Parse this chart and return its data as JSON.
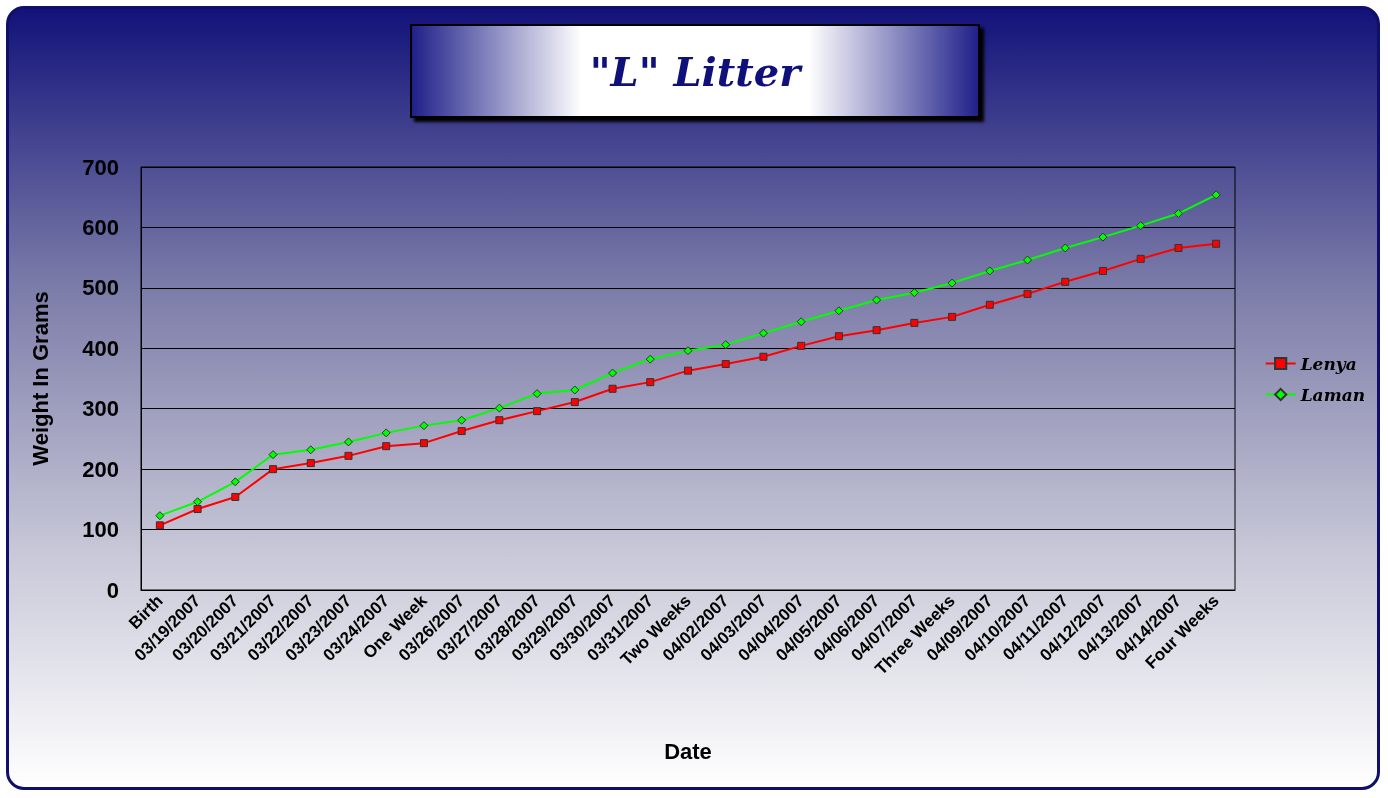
{
  "chart_data": {
    "type": "line",
    "title": "\"L\" Litter",
    "xlabel": "Date",
    "ylabel": "Weight In Grams",
    "categories": [
      "Birth",
      "03/19/2007",
      "03/20/2007",
      "03/21/2007",
      "03/22/2007",
      "03/23/2007",
      "03/24/2007",
      "One Week",
      "03/26/2007",
      "03/27/2007",
      "03/28/2007",
      "03/29/2007",
      "03/30/2007",
      "03/31/2007",
      "Two Weeks",
      "04/02/2007",
      "04/03/2007",
      "04/04/2007",
      "04/05/2007",
      "04/06/2007",
      "04/07/2007",
      "Three Weeks",
      "04/09/2007",
      "04/10/2007",
      "04/11/2007",
      "04/12/2007",
      "04/13/2007",
      "04/14/2007",
      "Four Weeks"
    ],
    "series": [
      {
        "name": "Lenya",
        "color": "#ff0000",
        "marker": "square",
        "values": [
          107,
          134,
          154,
          200,
          210,
          222,
          238,
          243,
          263,
          281,
          296,
          311,
          333,
          344,
          363,
          374,
          386,
          404,
          420,
          430,
          442,
          452,
          472,
          490,
          510,
          528,
          548,
          566,
          573
        ]
      },
      {
        "name": "Laman",
        "color": "#00ff00",
        "marker": "diamond",
        "values": [
          123,
          146,
          179,
          224,
          232,
          245,
          260,
          272,
          281,
          301,
          325,
          331,
          359,
          382,
          396,
          406,
          425,
          444,
          462,
          480,
          492,
          508,
          528,
          546,
          566,
          584,
          603,
          623,
          654
        ]
      }
    ],
    "ylim": [
      0,
      700
    ],
    "yticks": [
      0,
      100,
      200,
      300,
      400,
      500,
      600,
      700
    ],
    "grid": "y",
    "legend": "right"
  }
}
